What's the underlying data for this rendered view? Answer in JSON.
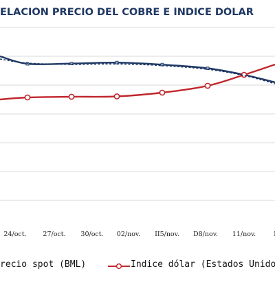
{
  "chart_data": {
    "type": "line",
    "title": "ELACIÓN PRECIO DEL COBRE E ÍNDICE DÓLAR",
    "categories": [
      "24/oct.",
      "27/oct.",
      "30/oct.",
      "02/nov.",
      "II5/nov.",
      "D8/nov.",
      "11/nov.",
      "1"
    ],
    "series": [
      {
        "name": "recio spot (BML)",
        "color": "#1f3864",
        "style": "solid",
        "values": [
          82,
          93,
          92.6,
          91.2,
          94.2,
          99.5,
          109,
          120
        ]
      },
      {
        "name": "Indice dólar (Estados Unido",
        "color": "#c0272d",
        "style": "solid-markers",
        "values": [
          145,
          142,
          141,
          140.5,
          135,
          125,
          109,
          94
        ]
      },
      {
        "name": "",
        "color": "#1f3864",
        "style": "dashed-trendline",
        "values": [
          86,
          92,
          93.8,
          93.2,
          95.6,
          101,
          110,
          122
        ]
      }
    ],
    "grid": true,
    "legend_position": "bottom"
  },
  "colors": {
    "title": "#1f3864",
    "grid": "#d9d9d9",
    "copper": "#1f3864",
    "dollar": "#c0272d"
  }
}
